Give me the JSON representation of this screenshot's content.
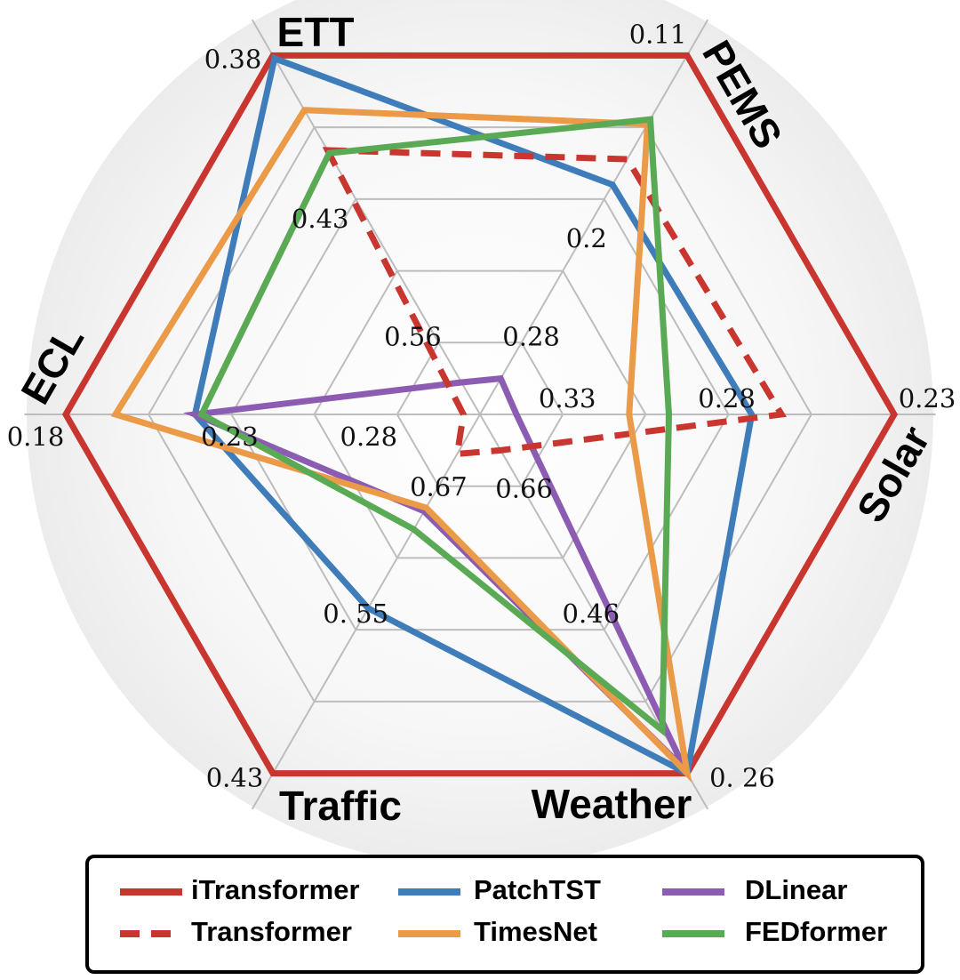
{
  "chart_data": {
    "type": "radar",
    "categories": [
      "ETT",
      "PEMS",
      "Solar",
      "Weather",
      "Traffic",
      "ECL"
    ],
    "axis_ticks": [
      [
        0.56,
        0.43,
        0.38
      ],
      [
        0.28,
        0.2,
        0.11
      ],
      [
        0.33,
        0.28,
        0.23
      ],
      [
        0.66,
        0.46,
        {
          "value": 0.26,
          "label": "0. 26"
        }
      ],
      [
        0.67,
        {
          "value": 0.55,
          "label": "0. 55"
        },
        0.43
      ],
      [
        0.28,
        0.23,
        0.18
      ]
    ],
    "series": [
      {
        "name": "iTransformer",
        "color": "#c8362f",
        "values": [
          0.38,
          0.11,
          0.23,
          0.26,
          0.43,
          0.18
        ]
      },
      {
        "name": "PatchTST",
        "color": "#3f7dba",
        "values": [
          0.381,
          0.191,
          0.273,
          0.26,
          0.568,
          0.219
        ]
      },
      {
        "name": "DLinear",
        "color": "#8c5cb3",
        "values": [
          0.596,
          0.3,
          0.344,
          0.265,
          0.649,
          0.219
        ]
      },
      {
        "name": "Transformer",
        "color": "#c8362f",
        "dashed": true,
        "values": [
          0.413,
          0.175,
          0.264,
          0.71,
          0.697,
          0.3
        ]
      },
      {
        "name": "TimesNet",
        "color": "#eb9a48",
        "values": [
          0.399,
          0.153,
          0.31,
          0.26,
          0.652,
          0.195
        ]
      },
      {
        "name": "FEDformer",
        "color": "#5aa954",
        "values": [
          0.414,
          0.15,
          0.298,
          0.32,
          0.634,
          0.221
        ]
      }
    ]
  }
}
